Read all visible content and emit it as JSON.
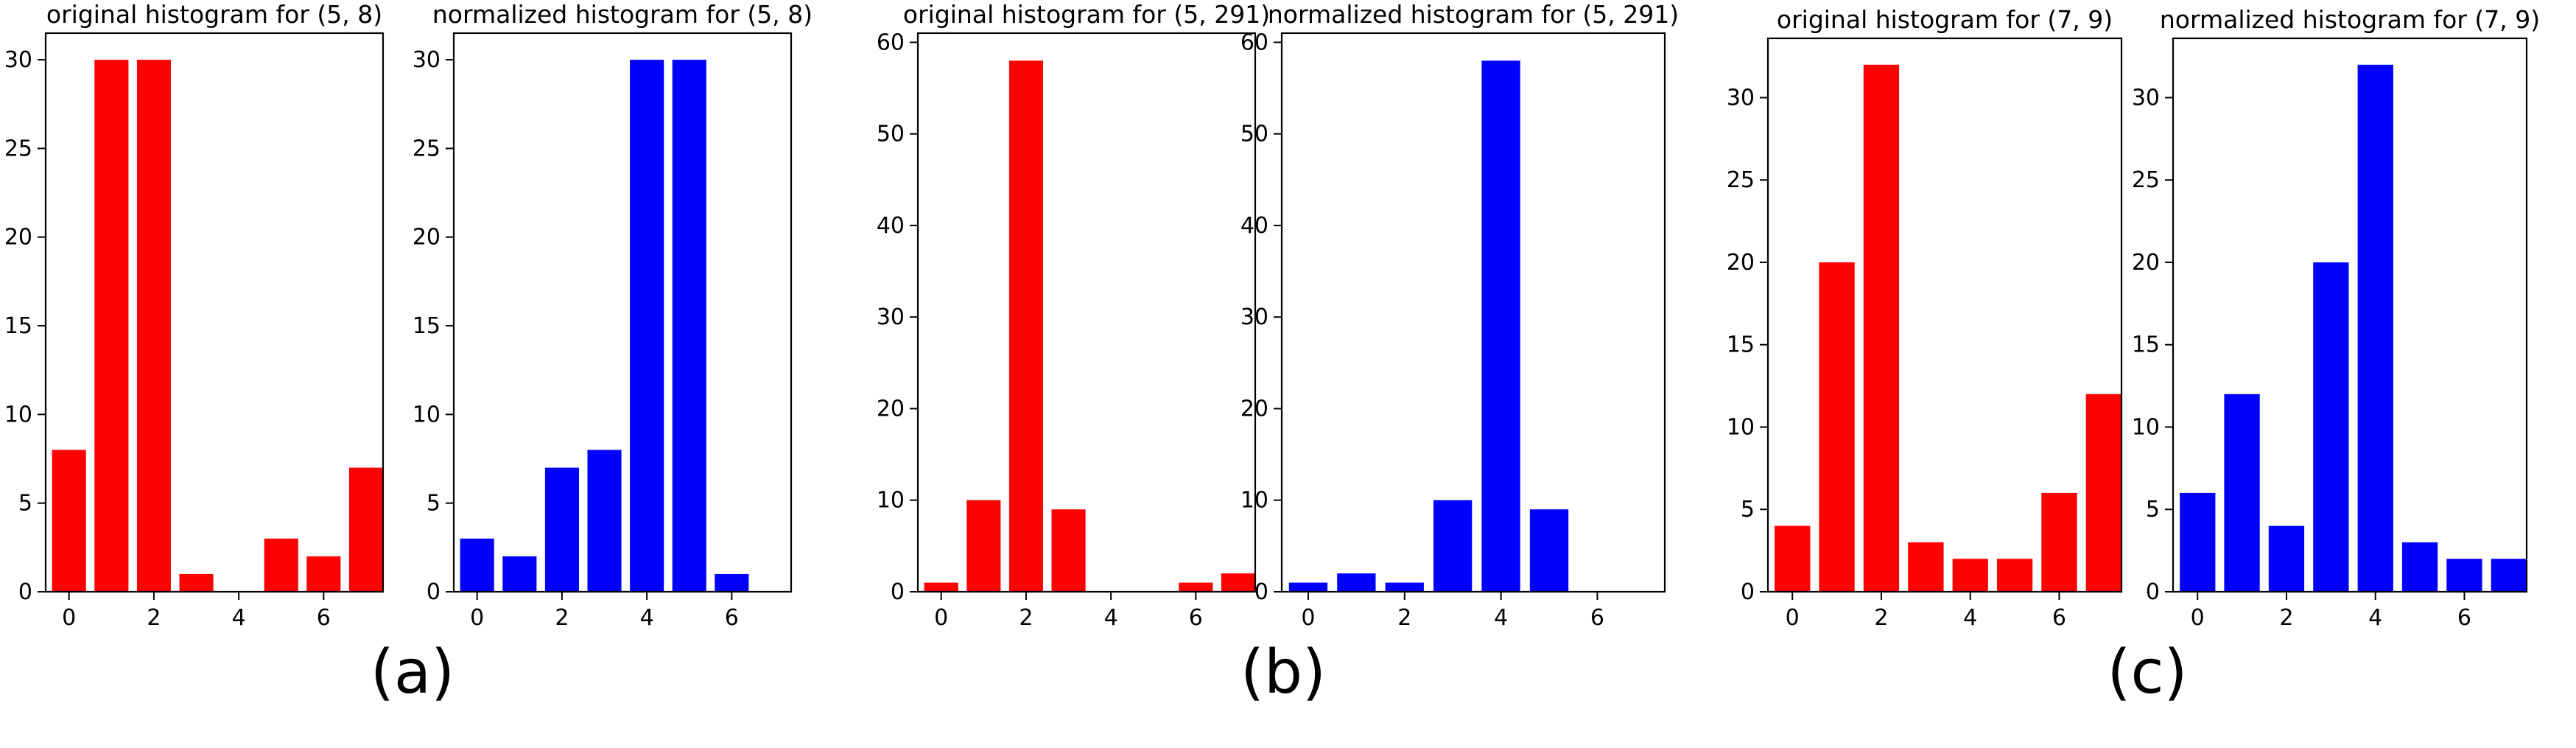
{
  "panel_labels": [
    "(a)",
    "(b)",
    "(c)"
  ],
  "chart_data": [
    {
      "type": "bar",
      "title": "original histogram for (5, 8)",
      "color": "#ff0000",
      "x": [
        0,
        1,
        2,
        3,
        4,
        5,
        6,
        7
      ],
      "values": [
        8,
        30,
        30,
        1,
        0,
        3,
        2,
        7
      ],
      "xticks": [
        0,
        2,
        4,
        6
      ],
      "yticks": [
        0,
        5,
        10,
        15,
        20,
        25,
        30
      ],
      "xlim": [
        -0.55,
        7.4
      ],
      "ylim": [
        0,
        31.5
      ],
      "xlabel": "",
      "ylabel": "",
      "grid": false
    },
    {
      "type": "bar",
      "title": "normalized histogram for (5, 8)",
      "color": "#0000ff",
      "x": [
        0,
        1,
        2,
        3,
        4,
        5,
        6,
        7
      ],
      "values": [
        3,
        2,
        7,
        8,
        30,
        30,
        1,
        0
      ],
      "xticks": [
        0,
        2,
        4,
        6
      ],
      "yticks": [
        0,
        5,
        10,
        15,
        20,
        25,
        30
      ],
      "xlim": [
        -0.55,
        7.4
      ],
      "ylim": [
        0,
        31.5
      ],
      "xlabel": "",
      "ylabel": "",
      "grid": false
    },
    {
      "type": "bar",
      "title": "original histogram for (5, 291)",
      "color": "#ff0000",
      "x": [
        0,
        1,
        2,
        3,
        4,
        5,
        6,
        7
      ],
      "values": [
        1,
        10,
        58,
        9,
        0,
        0,
        1,
        2
      ],
      "xticks": [
        0,
        2,
        4,
        6
      ],
      "yticks": [
        0,
        10,
        20,
        30,
        40,
        50,
        60
      ],
      "xlim": [
        -0.55,
        7.4
      ],
      "ylim": [
        0,
        61
      ],
      "xlabel": "",
      "ylabel": "",
      "grid": false
    },
    {
      "type": "bar",
      "title": "normalized histogram for (5, 291)",
      "color": "#0000ff",
      "x": [
        0,
        1,
        2,
        3,
        4,
        5,
        6,
        7
      ],
      "values": [
        1,
        2,
        1,
        10,
        58,
        9,
        0,
        0
      ],
      "xticks": [
        0,
        2,
        4,
        6
      ],
      "yticks": [
        0,
        10,
        20,
        30,
        40,
        50,
        60
      ],
      "xlim": [
        -0.55,
        7.4
      ],
      "ylim": [
        0,
        61
      ],
      "xlabel": "",
      "ylabel": "",
      "grid": false
    },
    {
      "type": "bar",
      "title": "original histogram for (7, 9)",
      "color": "#ff0000",
      "x": [
        0,
        1,
        2,
        3,
        4,
        5,
        6,
        7
      ],
      "values": [
        4,
        20,
        32,
        3,
        2,
        2,
        6,
        12
      ],
      "xticks": [
        0,
        2,
        4,
        6
      ],
      "yticks": [
        0,
        5,
        10,
        15,
        20,
        25,
        30
      ],
      "xlim": [
        -0.55,
        7.4
      ],
      "ylim": [
        0,
        33.6
      ],
      "xlabel": "",
      "ylabel": "",
      "grid": false
    },
    {
      "type": "bar",
      "title": "normalized histogram for (7, 9)",
      "color": "#0000ff",
      "x": [
        0,
        1,
        2,
        3,
        4,
        5,
        6,
        7
      ],
      "values": [
        6,
        12,
        4,
        20,
        32,
        3,
        2,
        2
      ],
      "xticks": [
        0,
        2,
        4,
        6
      ],
      "yticks": [
        0,
        5,
        10,
        15,
        20,
        25,
        30
      ],
      "xlim": [
        -0.55,
        7.4
      ],
      "ylim": [
        0,
        33.6
      ],
      "xlabel": "",
      "ylabel": "",
      "grid": false
    }
  ]
}
